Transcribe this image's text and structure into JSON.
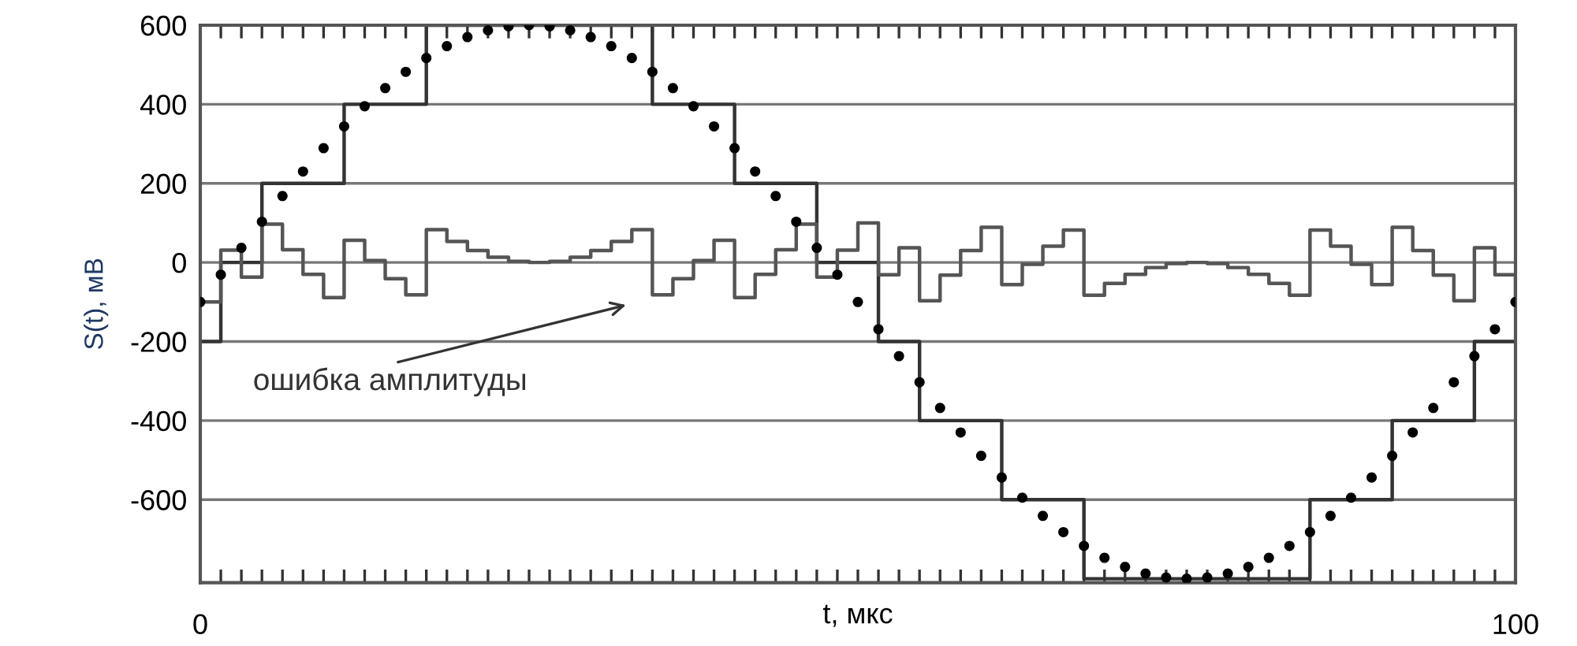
{
  "chart_data": {
    "type": "scatter",
    "xlabel": "t, мкс",
    "ylabel": "S(t), мВ",
    "x": [
      0,
      1.5625,
      3.125,
      4.6875,
      6.25,
      7.8125,
      9.375,
      10.9375,
      12.5,
      14.0625,
      15.625,
      17.1875,
      18.75,
      20.3125,
      21.875,
      23.4375,
      25,
      26.5625,
      28.125,
      29.6875,
      31.25,
      32.8125,
      34.375,
      35.9375,
      37.5,
      39.0625,
      40.625,
      42.1875,
      43.75,
      45.3125,
      46.875,
      48.4375,
      50,
      51.5625,
      53.125,
      54.6875,
      56.25,
      57.8125,
      59.375,
      60.9375,
      62.5,
      64.0625,
      65.625,
      67.1875,
      68.75,
      70.3125,
      71.875,
      73.4375,
      75,
      76.5625,
      78.125,
      79.6875,
      81.25,
      82.8125,
      84.375,
      85.9375,
      87.5,
      89.0625,
      90.625,
      92.1875,
      93.75,
      95.3125,
      96.875,
      98.4375,
      100
    ],
    "series": [
      {
        "type": "step",
        "color": "#333333",
        "values": [
          -200,
          0,
          0,
          200,
          200,
          200,
          200,
          400,
          400,
          400,
          400,
          600,
          600,
          600,
          600,
          600,
          600,
          600,
          600,
          600,
          600,
          600,
          400,
          400,
          400,
          400,
          200,
          200,
          200,
          200,
          0,
          0,
          0,
          -200,
          -200,
          -400,
          -400,
          -400,
          -400,
          -600,
          -600,
          -600,
          -600,
          -800,
          -800,
          -800,
          -800,
          -800,
          -800,
          -800,
          -800,
          -800,
          -800,
          -800,
          -600,
          -600,
          -600,
          -600,
          -400,
          -400,
          -400,
          -400,
          -200,
          -200,
          -200
        ]
      },
      {
        "type": "step",
        "color": "#555555",
        "values": [
          -100,
          31,
          -37,
          97,
          32,
          -30,
          -89,
          56,
          5,
          -41,
          -82,
          83,
          53,
          30,
          13,
          3,
          0,
          3,
          13,
          30,
          53,
          83,
          -82,
          -41,
          5,
          56,
          -89,
          -30,
          32,
          97,
          -37,
          31,
          100,
          -31,
          37,
          -97,
          -32,
          30,
          89,
          -56,
          -5,
          41,
          82,
          -83,
          -53,
          -30,
          -13,
          -3,
          0,
          -3,
          -13,
          -30,
          -53,
          -83,
          82,
          41,
          -5,
          -56,
          89,
          30,
          -32,
          -97,
          37,
          -31,
          -100
        ]
      },
      {
        "color": "#000000",
        "marker": "circle",
        "values": [
          -100,
          -31,
          37,
          103,
          168,
          230,
          289,
          344,
          395,
          441,
          482,
          517,
          547,
          570,
          587,
          597,
          600,
          597,
          587,
          570,
          547,
          517,
          482,
          441,
          395,
          344,
          289,
          230,
          168,
          103,
          37,
          -31,
          -100,
          -169,
          -237,
          -303,
          -368,
          -430,
          -489,
          -544,
          -595,
          -641,
          -682,
          -717,
          -747,
          -770,
          -787,
          -797,
          -800,
          -797,
          -787,
          -770,
          -747,
          -717,
          -682,
          -641,
          -595,
          -544,
          -489,
          -430,
          -368,
          -303,
          -237,
          -169,
          -100
        ]
      }
    ],
    "xlim": [
      0,
      100
    ],
    "ylim": [
      -810,
      600
    ],
    "xticks": [
      0,
      {
        "value": 1.5625,
        "label": null
      },
      {
        "value": 3.125,
        "label": null
      },
      {
        "value": 4.6875,
        "label": null
      },
      {
        "value": 6.25,
        "label": null
      },
      {
        "value": 7.8125,
        "label": null
      },
      {
        "value": 9.375,
        "label": null
      },
      {
        "value": 10.9375,
        "label": null
      },
      {
        "value": 12.5,
        "label": null
      },
      {
        "value": 14.0625,
        "label": null
      },
      {
        "value": 15.625,
        "label": null
      },
      {
        "value": 17.1875,
        "label": null
      },
      {
        "value": 18.75,
        "label": null
      },
      {
        "value": 20.3125,
        "label": null
      },
      {
        "value": 21.875,
        "label": null
      },
      {
        "value": 23.4375,
        "label": null
      },
      {
        "value": 25,
        "label": null
      },
      {
        "value": 26.5625,
        "label": null
      },
      {
        "value": 28.125,
        "label": null
      },
      {
        "value": 29.6875,
        "label": null
      },
      {
        "value": 31.25,
        "label": null
      },
      {
        "value": 32.8125,
        "label": null
      },
      {
        "value": 34.375,
        "label": null
      },
      {
        "value": 35.9375,
        "label": null
      },
      {
        "value": 37.5,
        "label": null
      },
      {
        "value": 39.0625,
        "label": null
      },
      {
        "value": 40.625,
        "label": null
      },
      {
        "value": 42.1875,
        "label": null
      },
      {
        "value": 43.75,
        "label": null
      },
      {
        "value": 45.3125,
        "label": null
      },
      {
        "value": 46.875,
        "label": null
      },
      {
        "value": 48.4375,
        "label": null
      },
      {
        "value": 50,
        "label": null
      },
      {
        "value": 51.5625,
        "label": null
      },
      {
        "value": 53.125,
        "label": null
      },
      {
        "value": 54.6875,
        "label": null
      },
      {
        "value": 56.25,
        "label": null
      },
      {
        "value": 57.8125,
        "label": null
      },
      {
        "value": 59.375,
        "label": null
      },
      {
        "value": 60.9375,
        "label": null
      },
      {
        "value": 62.5,
        "label": null
      },
      {
        "value": 64.0625,
        "label": null
      },
      {
        "value": 65.625,
        "label": null
      },
      {
        "value": 67.1875,
        "label": null
      },
      {
        "value": 68.75,
        "label": null
      },
      {
        "value": 70.3125,
        "label": null
      },
      {
        "value": 71.875,
        "label": null
      },
      {
        "value": 73.4375,
        "label": null
      },
      {
        "value": 75,
        "label": null
      },
      {
        "value": 76.5625,
        "label": null
      },
      {
        "value": 78.125,
        "label": null
      },
      {
        "value": 79.6875,
        "label": null
      },
      {
        "value": 81.25,
        "label": null
      },
      {
        "value": 82.8125,
        "label": null
      },
      {
        "value": 84.375,
        "label": null
      },
      {
        "value": 85.9375,
        "label": null
      },
      {
        "value": 87.5,
        "label": null
      },
      {
        "value": 89.0625,
        "label": null
      },
      {
        "value": 90.625,
        "label": null
      },
      {
        "value": 92.1875,
        "label": null
      },
      {
        "value": 93.75,
        "label": null
      },
      {
        "value": 95.3125,
        "label": null
      },
      {
        "value": 96.875,
        "label": null
      },
      {
        "value": 98.4375,
        "label": null
      },
      100
    ],
    "yticks": [
      -600,
      -400,
      -200,
      0,
      200,
      400,
      600
    ],
    "grid": "y",
    "annotations": [
      "ошибка амплитуды"
    ]
  }
}
